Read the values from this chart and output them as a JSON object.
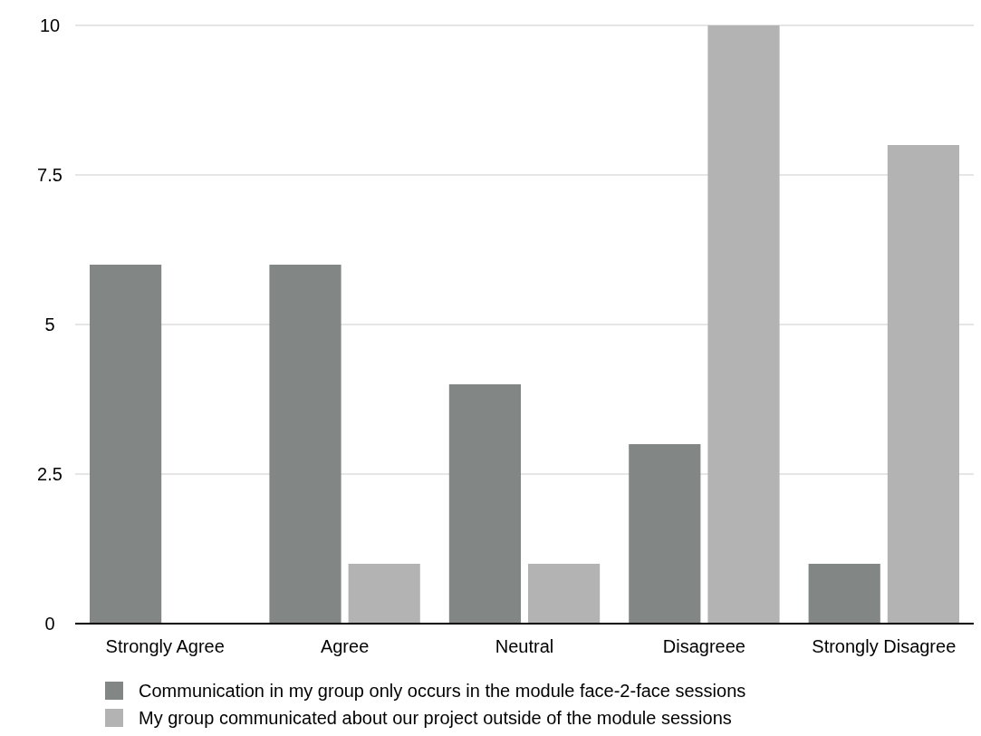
{
  "chart_data": {
    "type": "bar",
    "categories": [
      "Strongly Agree",
      "Agree",
      "Neutral",
      "Disagreee",
      "Strongly Disagree"
    ],
    "series": [
      {
        "name": "Communication in my group only occurs in the module face-2-face sessions",
        "color": "#828785",
        "values": [
          6,
          6,
          4,
          3,
          1
        ]
      },
      {
        "name": "My group communicated about our project outside of the module sessions",
        "color": "#b3b3b3",
        "values": [
          0,
          1,
          1,
          10,
          8
        ]
      }
    ],
    "ylim": [
      0,
      10
    ],
    "yticks": [
      0,
      {
        "value": 2.5,
        "label": "2.5"
      },
      5,
      {
        "value": 7.5,
        "label": "7.5"
      },
      10
    ],
    "grid": "y",
    "legend": "bottom"
  }
}
